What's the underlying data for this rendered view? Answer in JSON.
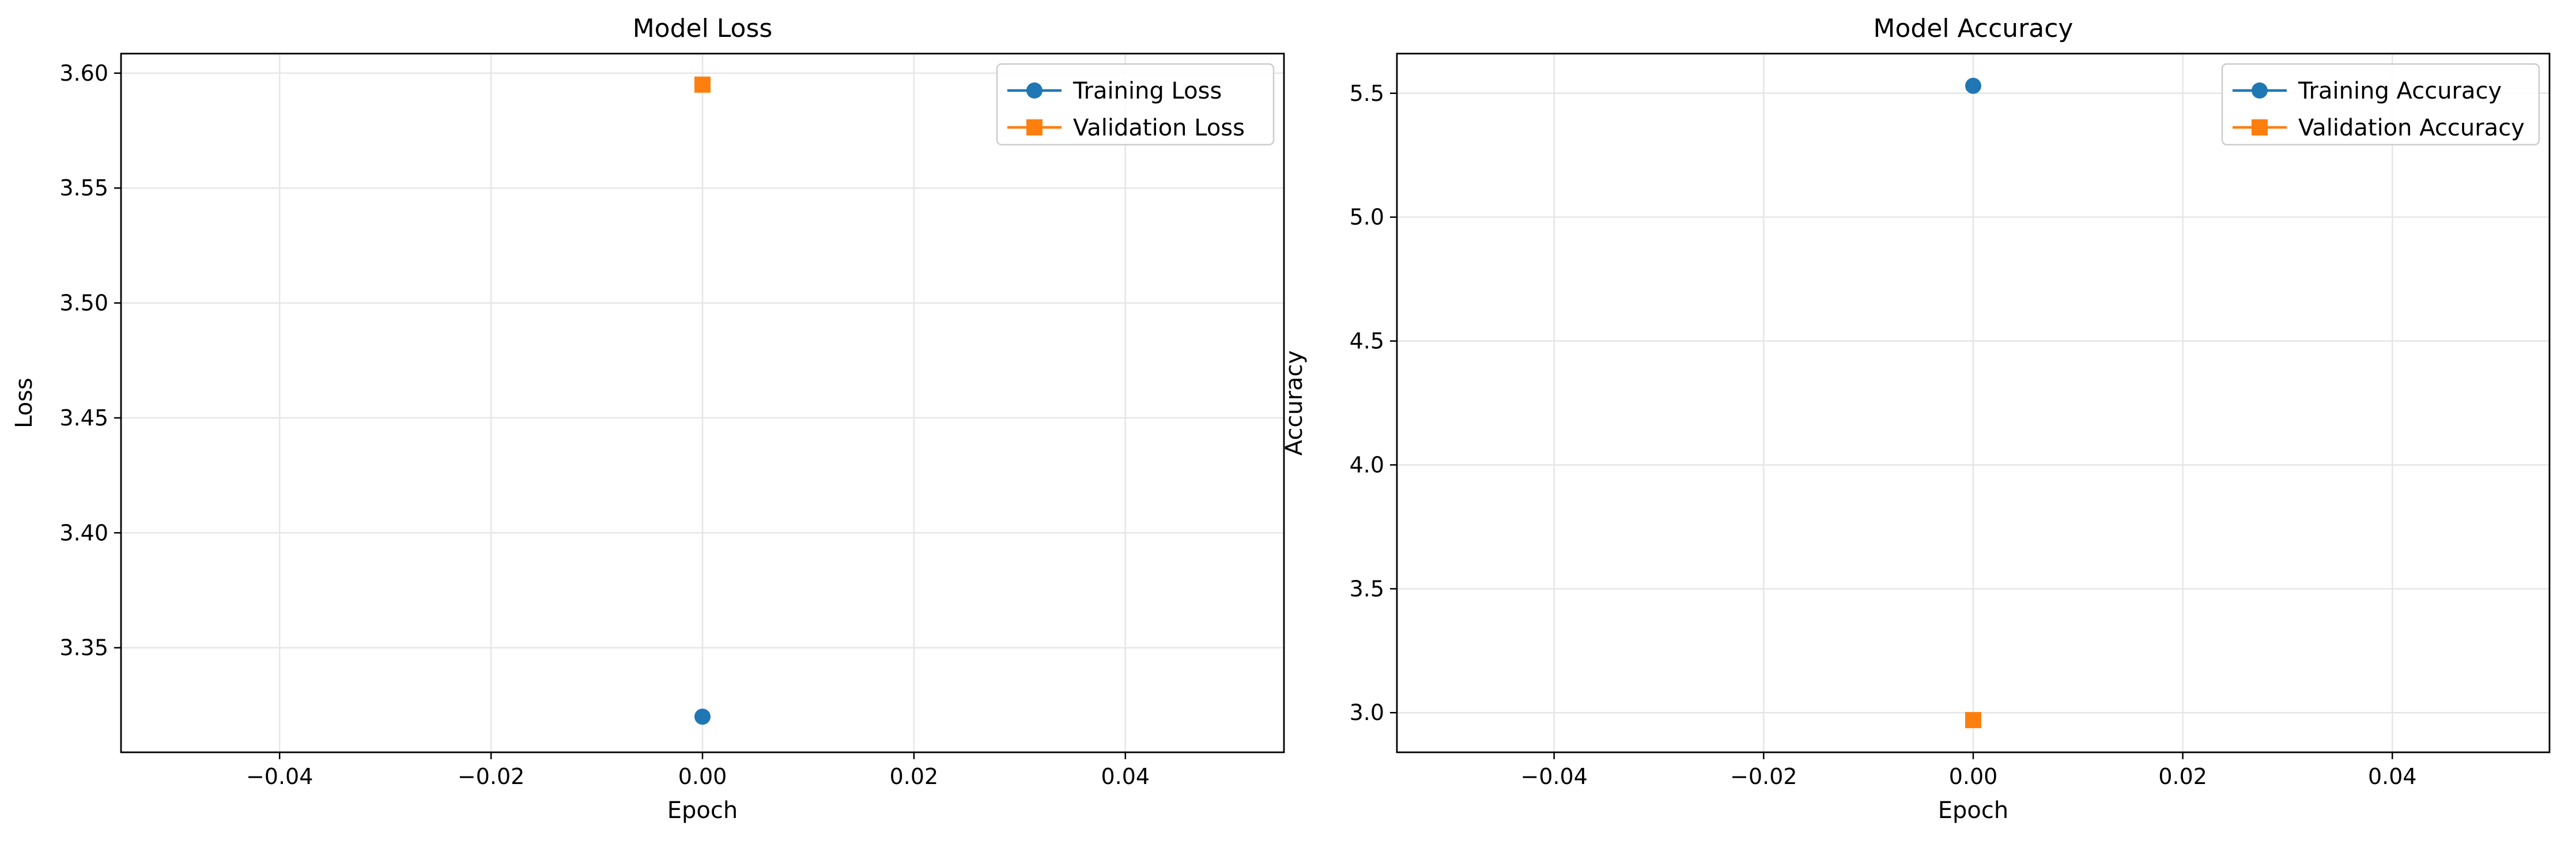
{
  "chart_data": [
    {
      "type": "line",
      "title": "Model Loss",
      "xlabel": "Epoch",
      "ylabel": "Loss",
      "xlim": [
        -0.055,
        0.055
      ],
      "ylim": [
        3.3045,
        3.6085
      ],
      "xticks": [
        -0.04,
        -0.02,
        0.0,
        0.02,
        0.04
      ],
      "xtick_labels": [
        "−0.04",
        "−0.02",
        "0.00",
        "0.02",
        "0.04"
      ],
      "yticks": [
        3.35,
        3.4,
        3.45,
        3.5,
        3.55,
        3.6
      ],
      "ytick_labels": [
        "3.35",
        "3.40",
        "3.45",
        "3.50",
        "3.55",
        "3.60"
      ],
      "grid": true,
      "legend_position": "top-right",
      "series": [
        {
          "name": "Training Loss",
          "marker": "circle",
          "color": "#1f77b4",
          "x": [
            0
          ],
          "y": [
            3.32
          ]
        },
        {
          "name": "Validation Loss",
          "marker": "square",
          "color": "#ff7f0e",
          "x": [
            0
          ],
          "y": [
            3.595
          ]
        }
      ]
    },
    {
      "type": "line",
      "title": "Model Accuracy",
      "xlabel": "Epoch",
      "ylabel": "Accuracy",
      "xlim": [
        -0.055,
        0.055
      ],
      "ylim": [
        2.84,
        5.66
      ],
      "xticks": [
        -0.04,
        -0.02,
        0.0,
        0.02,
        0.04
      ],
      "xtick_labels": [
        "−0.04",
        "−0.02",
        "0.00",
        "0.02",
        "0.04"
      ],
      "yticks": [
        3.0,
        3.5,
        4.0,
        4.5,
        5.0,
        5.5
      ],
      "ytick_labels": [
        "3.0",
        "3.5",
        "4.0",
        "4.5",
        "5.0",
        "5.5"
      ],
      "grid": true,
      "legend_position": "top-right",
      "series": [
        {
          "name": "Training Accuracy",
          "marker": "circle",
          "color": "#1f77b4",
          "x": [
            0
          ],
          "y": [
            5.53
          ]
        },
        {
          "name": "Validation Accuracy",
          "marker": "square",
          "color": "#ff7f0e",
          "x": [
            0
          ],
          "y": [
            2.97
          ]
        }
      ]
    }
  ]
}
